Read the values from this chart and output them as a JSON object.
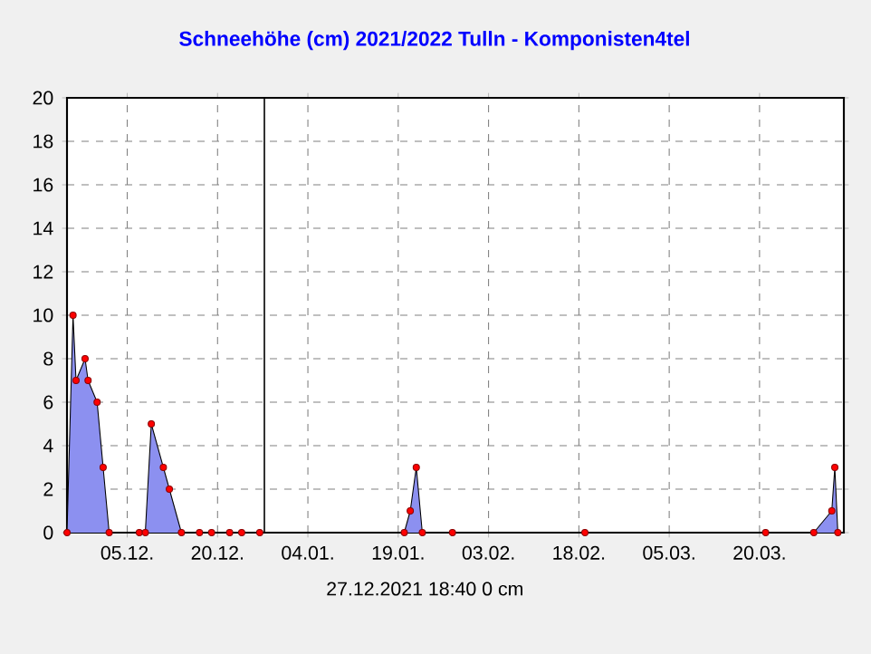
{
  "chart_data": {
    "type": "area",
    "title": "Schneehöhe (cm)  2021/2022      Tulln - Komponisten4tel",
    "x": [
      "2021-11-25",
      "2021-11-26",
      "2021-11-26T12:00",
      "2021-11-28",
      "2021-11-28T12:00",
      "2021-11-30",
      "2021-12-01",
      "2021-12-02",
      "2021-12-07",
      "2021-12-08",
      "2021-12-09",
      "2021-12-11",
      "2021-12-12",
      "2021-12-14",
      "2021-12-17",
      "2021-12-19",
      "2021-12-22",
      "2021-12-24",
      "2021-12-27",
      "2022-01-20",
      "2022-01-21",
      "2022-01-22",
      "2022-01-23",
      "2022-01-28",
      "2022-02-19",
      "2022-03-21",
      "2022-03-29",
      "2022-04-01",
      "2022-04-01T12:00",
      "2022-04-02"
    ],
    "series": [
      {
        "color": "#8c90f0",
        "values": [
          0,
          10,
          7,
          8,
          7,
          6,
          3,
          0,
          0,
          0,
          5,
          3,
          2,
          0,
          0,
          0,
          0,
          0,
          0,
          0,
          1,
          3,
          0,
          0,
          0,
          0,
          0,
          1,
          3,
          0
        ]
      }
    ],
    "xlim": [
      "2021-11-25",
      "2022-04-03"
    ],
    "xticks": [
      {
        "value": "2021-12-05",
        "label": "05.12."
      },
      {
        "value": "2021-12-20",
        "label": "20.12."
      },
      {
        "value": "2022-01-04",
        "label": "04.01."
      },
      {
        "value": "2022-01-19",
        "label": "19.01."
      },
      {
        "value": "2022-02-03",
        "label": "03.02."
      },
      {
        "value": "2022-02-18",
        "label": "18.02."
      },
      {
        "value": "2022-03-05",
        "label": "05.03."
      },
      {
        "value": "2022-03-20",
        "label": "20.03."
      }
    ],
    "ylim": [
      0,
      20
    ],
    "yticks": [
      0,
      2,
      4,
      6,
      8,
      10,
      12,
      14,
      16,
      18,
      20
    ],
    "grid": true,
    "marker": "circle",
    "ref_lines": [
      {
        "axis": "x",
        "value": "2021-12-27T18:40",
        "color": "#000000"
      }
    ],
    "annotations": [
      "27.12.2021  18:40    0 cm"
    ]
  }
}
